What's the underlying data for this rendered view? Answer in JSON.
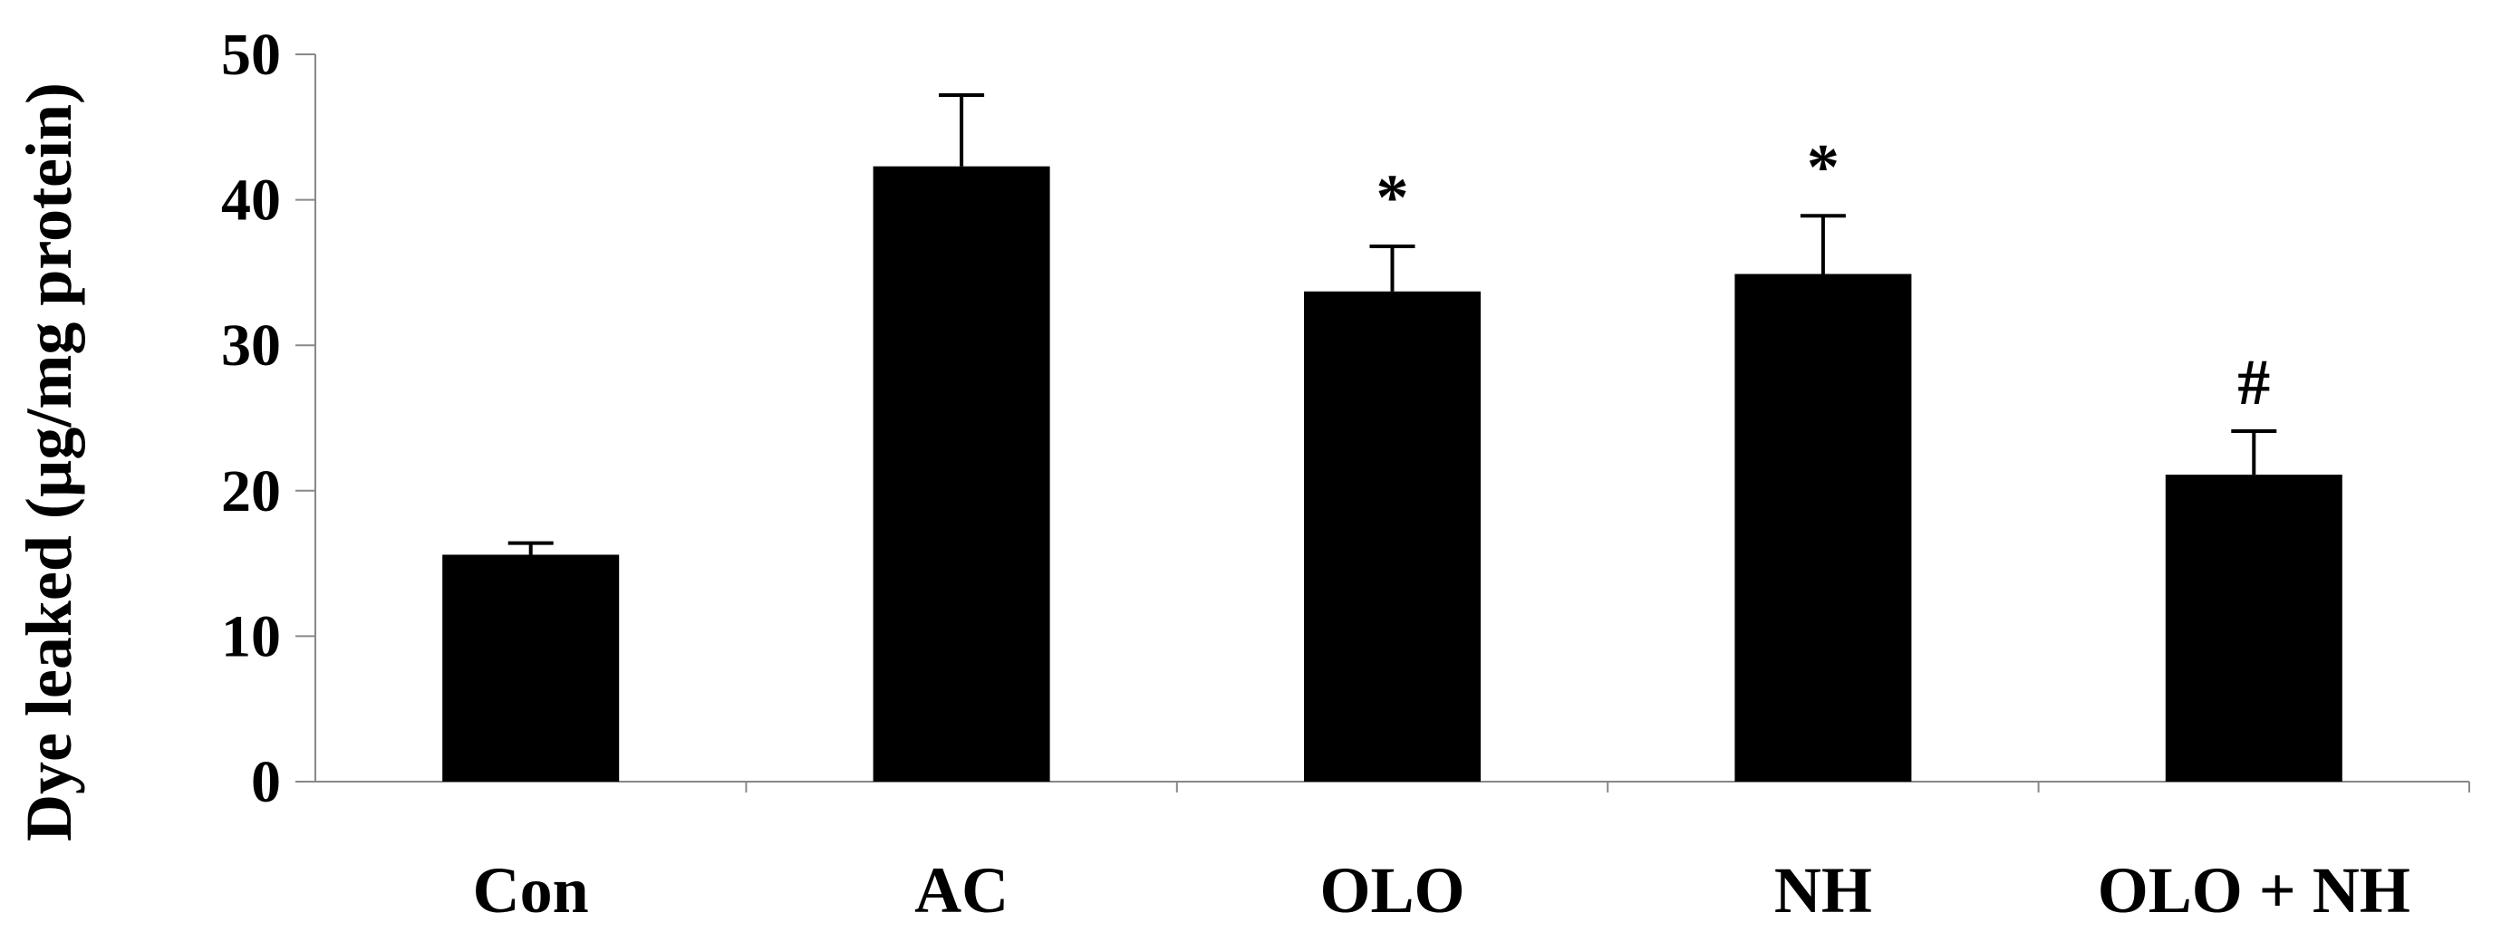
{
  "chart_data": {
    "type": "bar",
    "categories": [
      "Con",
      "AC",
      "OLO",
      "NH",
      "OLO + NH"
    ],
    "values": [
      15.6,
      42.3,
      33.7,
      34.9,
      21.1
    ],
    "errors": [
      0.8,
      4.9,
      3.1,
      4.0,
      3.0
    ],
    "annotations": [
      "",
      "",
      "*",
      "*",
      "#"
    ],
    "ylabel": "Dye leaked (µg/mg protein)",
    "xlabel": "",
    "ylim": [
      0,
      50
    ],
    "yticks": [
      "0",
      "10",
      "20",
      "30",
      "40",
      "50"
    ],
    "grid": false,
    "legend": "none",
    "bar_color": "#000000"
  }
}
